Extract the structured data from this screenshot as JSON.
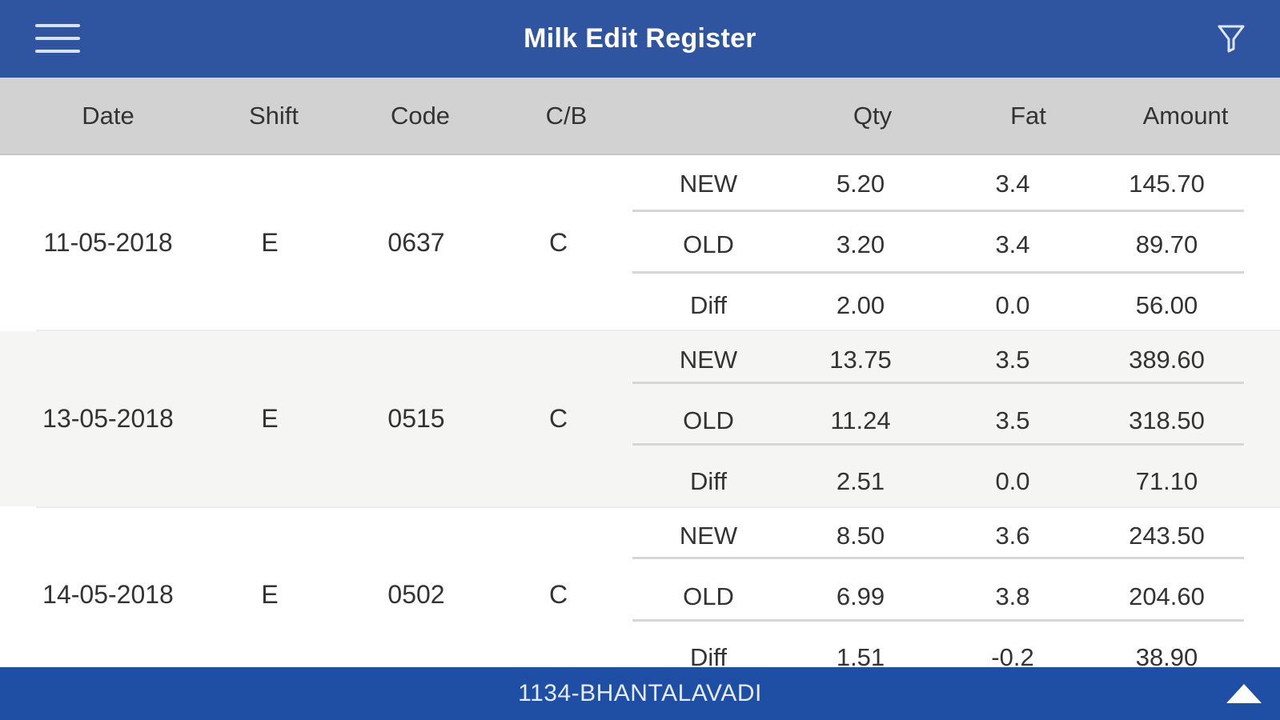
{
  "app_bar": {
    "title": "Milk Edit Register",
    "menu_icon": "menu-icon",
    "filter_icon": "filter-icon"
  },
  "columns": {
    "date": "Date",
    "shift": "Shift",
    "code": "Code",
    "cb": "C/B",
    "type": "",
    "qty": "Qty",
    "fat": "Fat",
    "amount": "Amount"
  },
  "records": [
    {
      "date": "11-05-2018",
      "shift": "E",
      "code": "0637",
      "cb": "C",
      "lines": [
        {
          "type": "NEW",
          "qty": "5.20",
          "fat": "3.4",
          "amount": "145.70"
        },
        {
          "type": "OLD",
          "qty": "3.20",
          "fat": "3.4",
          "amount": "89.70"
        },
        {
          "type": "Diff",
          "qty": "2.00",
          "fat": "0.0",
          "amount": "56.00"
        }
      ]
    },
    {
      "date": "13-05-2018",
      "shift": "E",
      "code": "0515",
      "cb": "C",
      "lines": [
        {
          "type": "NEW",
          "qty": "13.75",
          "fat": "3.5",
          "amount": "389.60"
        },
        {
          "type": "OLD",
          "qty": "11.24",
          "fat": "3.5",
          "amount": "318.50"
        },
        {
          "type": "Diff",
          "qty": "2.51",
          "fat": "0.0",
          "amount": "71.10"
        }
      ]
    },
    {
      "date": "14-05-2018",
      "shift": "E",
      "code": "0502",
      "cb": "C",
      "lines": [
        {
          "type": "NEW",
          "qty": "8.50",
          "fat": "3.6",
          "amount": "243.50"
        },
        {
          "type": "OLD",
          "qty": "6.99",
          "fat": "3.8",
          "amount": "204.60"
        },
        {
          "type": "Diff",
          "qty": "1.51",
          "fat": "-0.2",
          "amount": "38.90"
        }
      ]
    }
  ],
  "footer": {
    "center_label": "1134-BHANTALAVADI",
    "up_icon": "triangle-up-icon"
  },
  "colors": {
    "app_bar": "#2f55a0",
    "header_row": "#d2d2d2",
    "alt_row": "#f5f5f4",
    "footer": "#1f4ea5"
  }
}
